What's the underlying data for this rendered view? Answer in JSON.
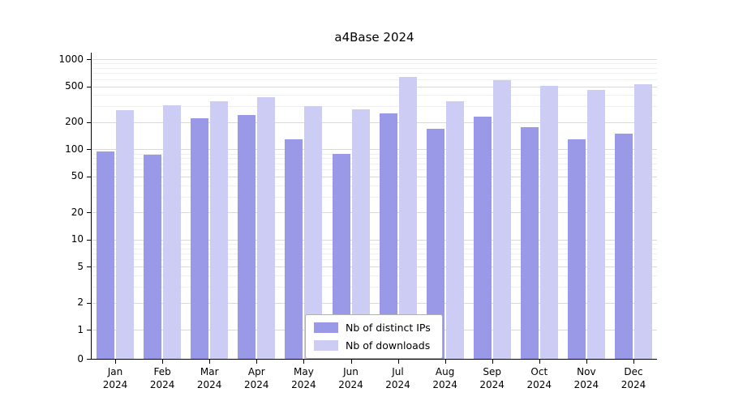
{
  "chart_data": {
    "type": "bar",
    "title": "a4Base 2024",
    "x_categories": [
      "Jan",
      "Feb",
      "Mar",
      "Apr",
      "May",
      "Jun",
      "Jul",
      "Aug",
      "Sep",
      "Oct",
      "Nov",
      "Dec"
    ],
    "x_category_subline": "2024",
    "series": [
      {
        "name": "Nb of distinct IPs",
        "color": "#9999e8",
        "values": [
          95,
          88,
          220,
          240,
          130,
          90,
          250,
          170,
          230,
          175,
          130,
          150
        ]
      },
      {
        "name": "Nb of downloads",
        "color": "#ccccf5",
        "values": [
          270,
          310,
          345,
          380,
          300,
          280,
          630,
          340,
          590,
          510,
          460,
          530
        ]
      }
    ],
    "y_scale": "log",
    "y_ticks": [
      1000,
      500,
      200,
      100,
      50,
      20,
      10,
      5,
      2,
      1,
      0
    ],
    "y_minor_ticks": [
      900,
      800,
      700,
      600,
      400,
      300,
      90,
      80,
      70,
      60,
      40,
      30,
      9,
      8,
      7,
      6,
      4,
      3
    ],
    "ylim": [
      0,
      1180
    ],
    "grid": true,
    "legend": {
      "position": "lower-center"
    }
  }
}
